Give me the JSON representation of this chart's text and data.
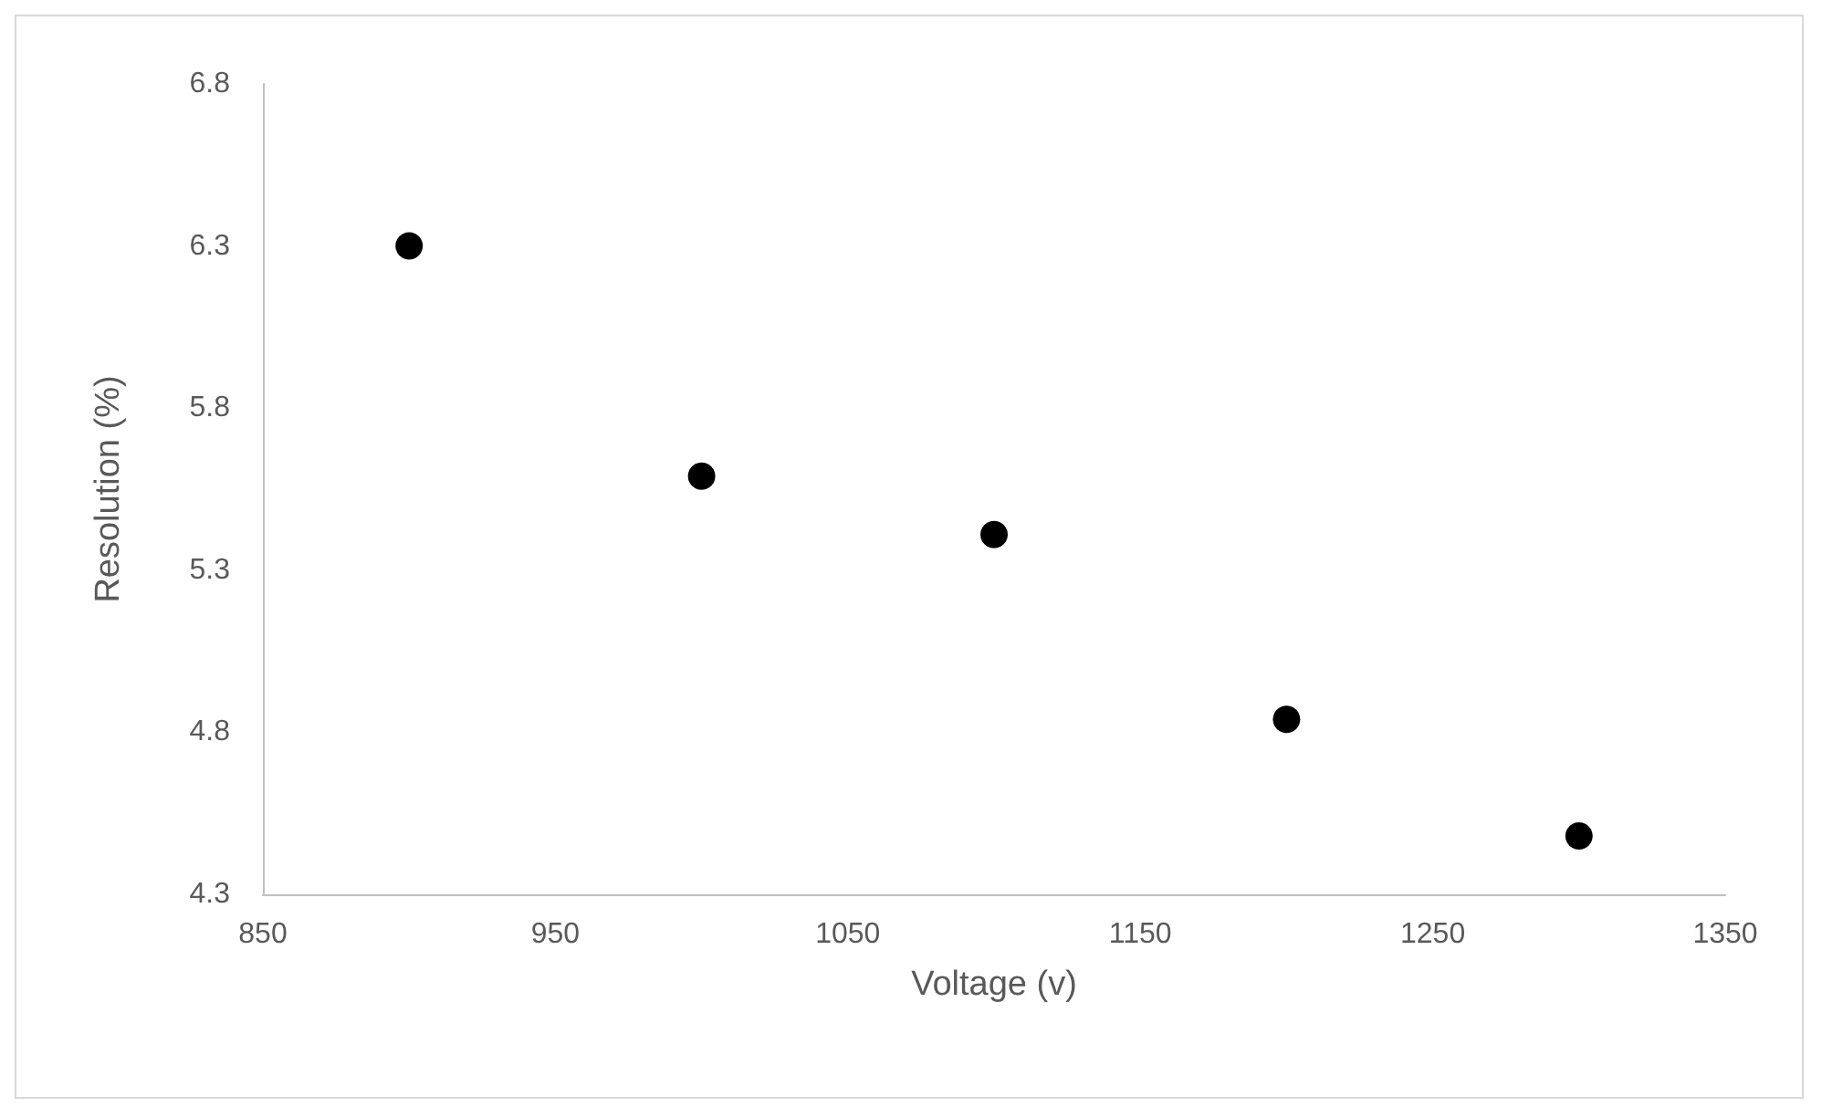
{
  "chart_data": {
    "type": "scatter",
    "xlabel": "Voltage (v)",
    "ylabel": "Resolution (%)",
    "x": [
      900,
      1000,
      1100,
      1200,
      1300
    ],
    "series": [
      {
        "color": "#000000",
        "values": [
          6.3,
          5.59,
          5.41,
          4.84,
          4.48
        ]
      }
    ],
    "xlim": [
      850,
      1350
    ],
    "xticks": [
      850,
      950,
      1050,
      1150,
      1250,
      1350
    ],
    "ylim": [
      4.3,
      6.8
    ],
    "yticks": [
      4.3,
      4.8,
      5.3,
      5.8,
      6.3,
      6.8
    ],
    "grid": false,
    "marker": "circle"
  }
}
